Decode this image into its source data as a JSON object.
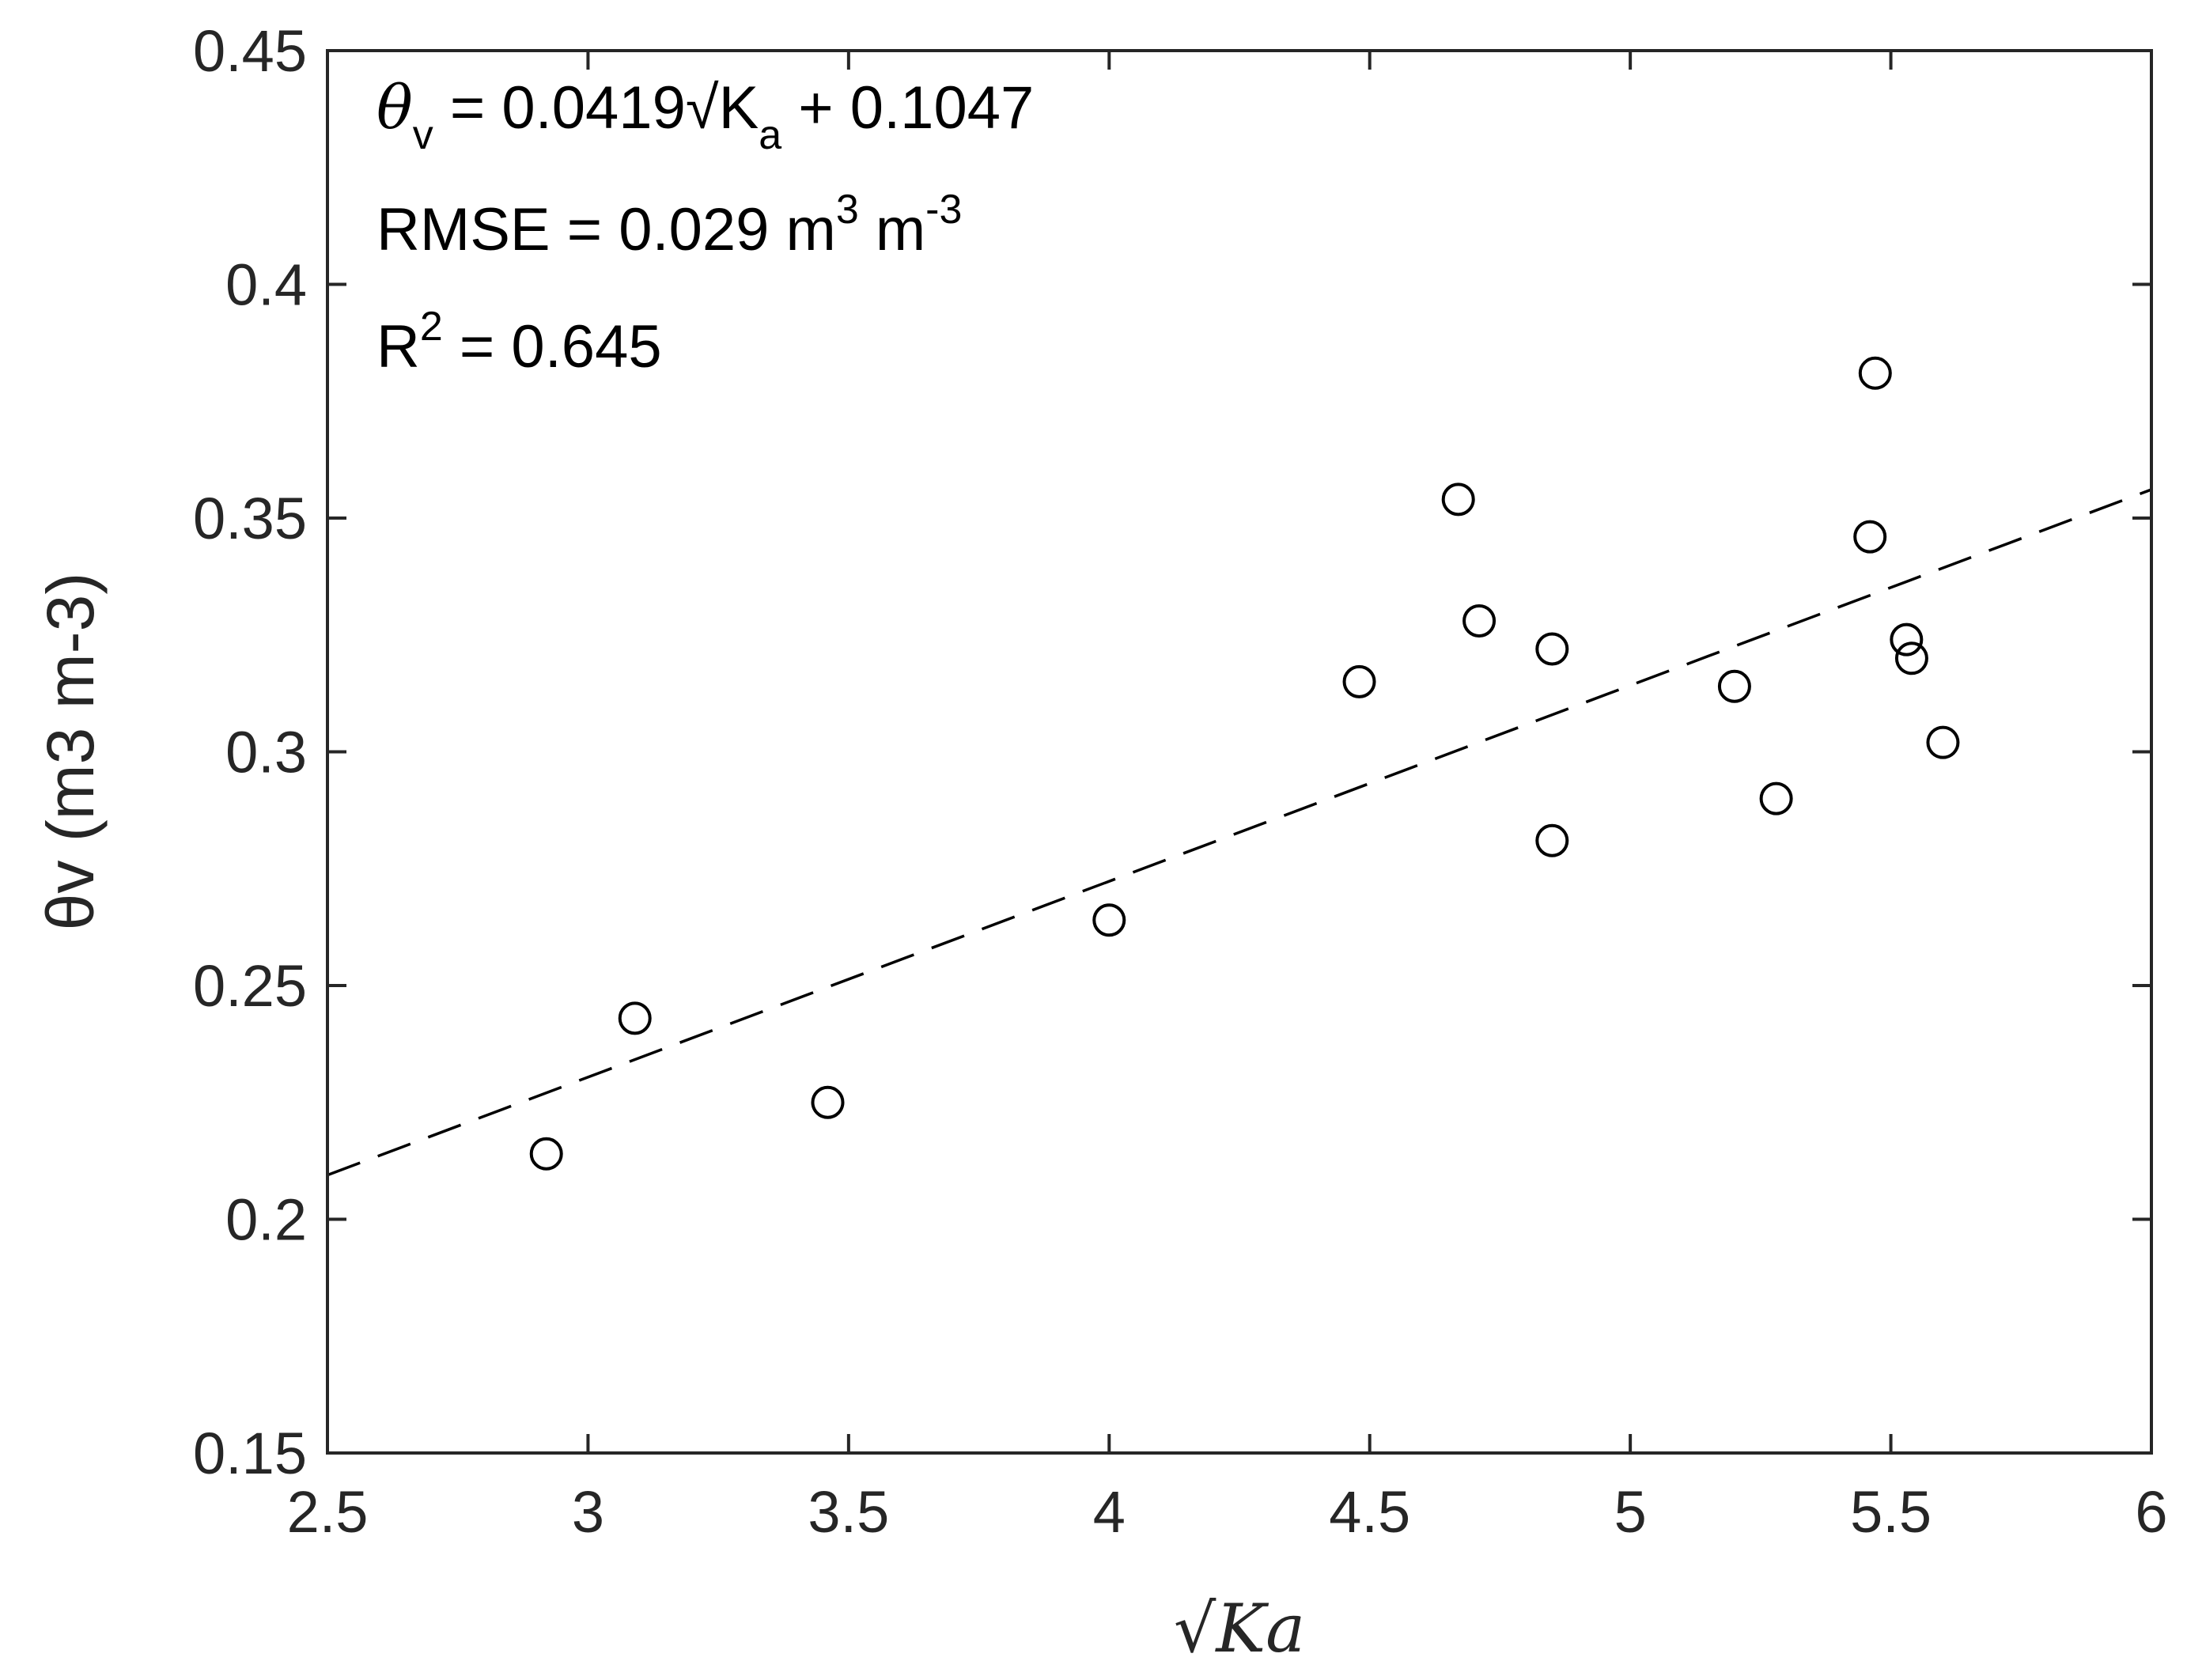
{
  "chart_data": {
    "type": "scatter",
    "xlim": [
      2.5,
      6
    ],
    "ylim": [
      0.15,
      0.45
    ],
    "x_ticks": [
      "2.5",
      "3",
      "3.5",
      "4",
      "4.5",
      "5",
      "5.5",
      "6"
    ],
    "y_ticks": [
      "0.15",
      "0.2",
      "0.25",
      "0.3",
      "0.35",
      "0.4",
      "0.45"
    ],
    "xlabel": "√Ka",
    "ylabel": "θv (m3 m-3)",
    "grid": false,
    "points": [
      {
        "x": 2.92,
        "y": 0.214
      },
      {
        "x": 3.09,
        "y": 0.243
      },
      {
        "x": 3.46,
        "y": 0.225
      },
      {
        "x": 4.0,
        "y": 0.264
      },
      {
        "x": 4.48,
        "y": 0.315
      },
      {
        "x": 4.67,
        "y": 0.354
      },
      {
        "x": 4.71,
        "y": 0.328
      },
      {
        "x": 4.85,
        "y": 0.322
      },
      {
        "x": 4.85,
        "y": 0.281
      },
      {
        "x": 5.2,
        "y": 0.314
      },
      {
        "x": 5.28,
        "y": 0.29
      },
      {
        "x": 5.46,
        "y": 0.346
      },
      {
        "x": 5.47,
        "y": 0.381
      },
      {
        "x": 5.53,
        "y": 0.324
      },
      {
        "x": 5.54,
        "y": 0.32
      },
      {
        "x": 5.6,
        "y": 0.302
      }
    ],
    "fit_line": {
      "slope": 0.0419,
      "intercept": 0.1047,
      "style": "dashed"
    },
    "annotations": {
      "equation": {
        "theta": "θ",
        "theta_sub": "v",
        "mid": " = 0.0419",
        "root": "√",
        "k": "K",
        "k_sub": "a",
        "tail": " + 0.1047"
      },
      "rmse": {
        "main": "RMSE = 0.029 m",
        "sup1": "3",
        "mid": " m",
        "sup2": "-3"
      },
      "r2": {
        "main": "R",
        "sup": "2",
        "tail": " = 0.645"
      }
    }
  }
}
